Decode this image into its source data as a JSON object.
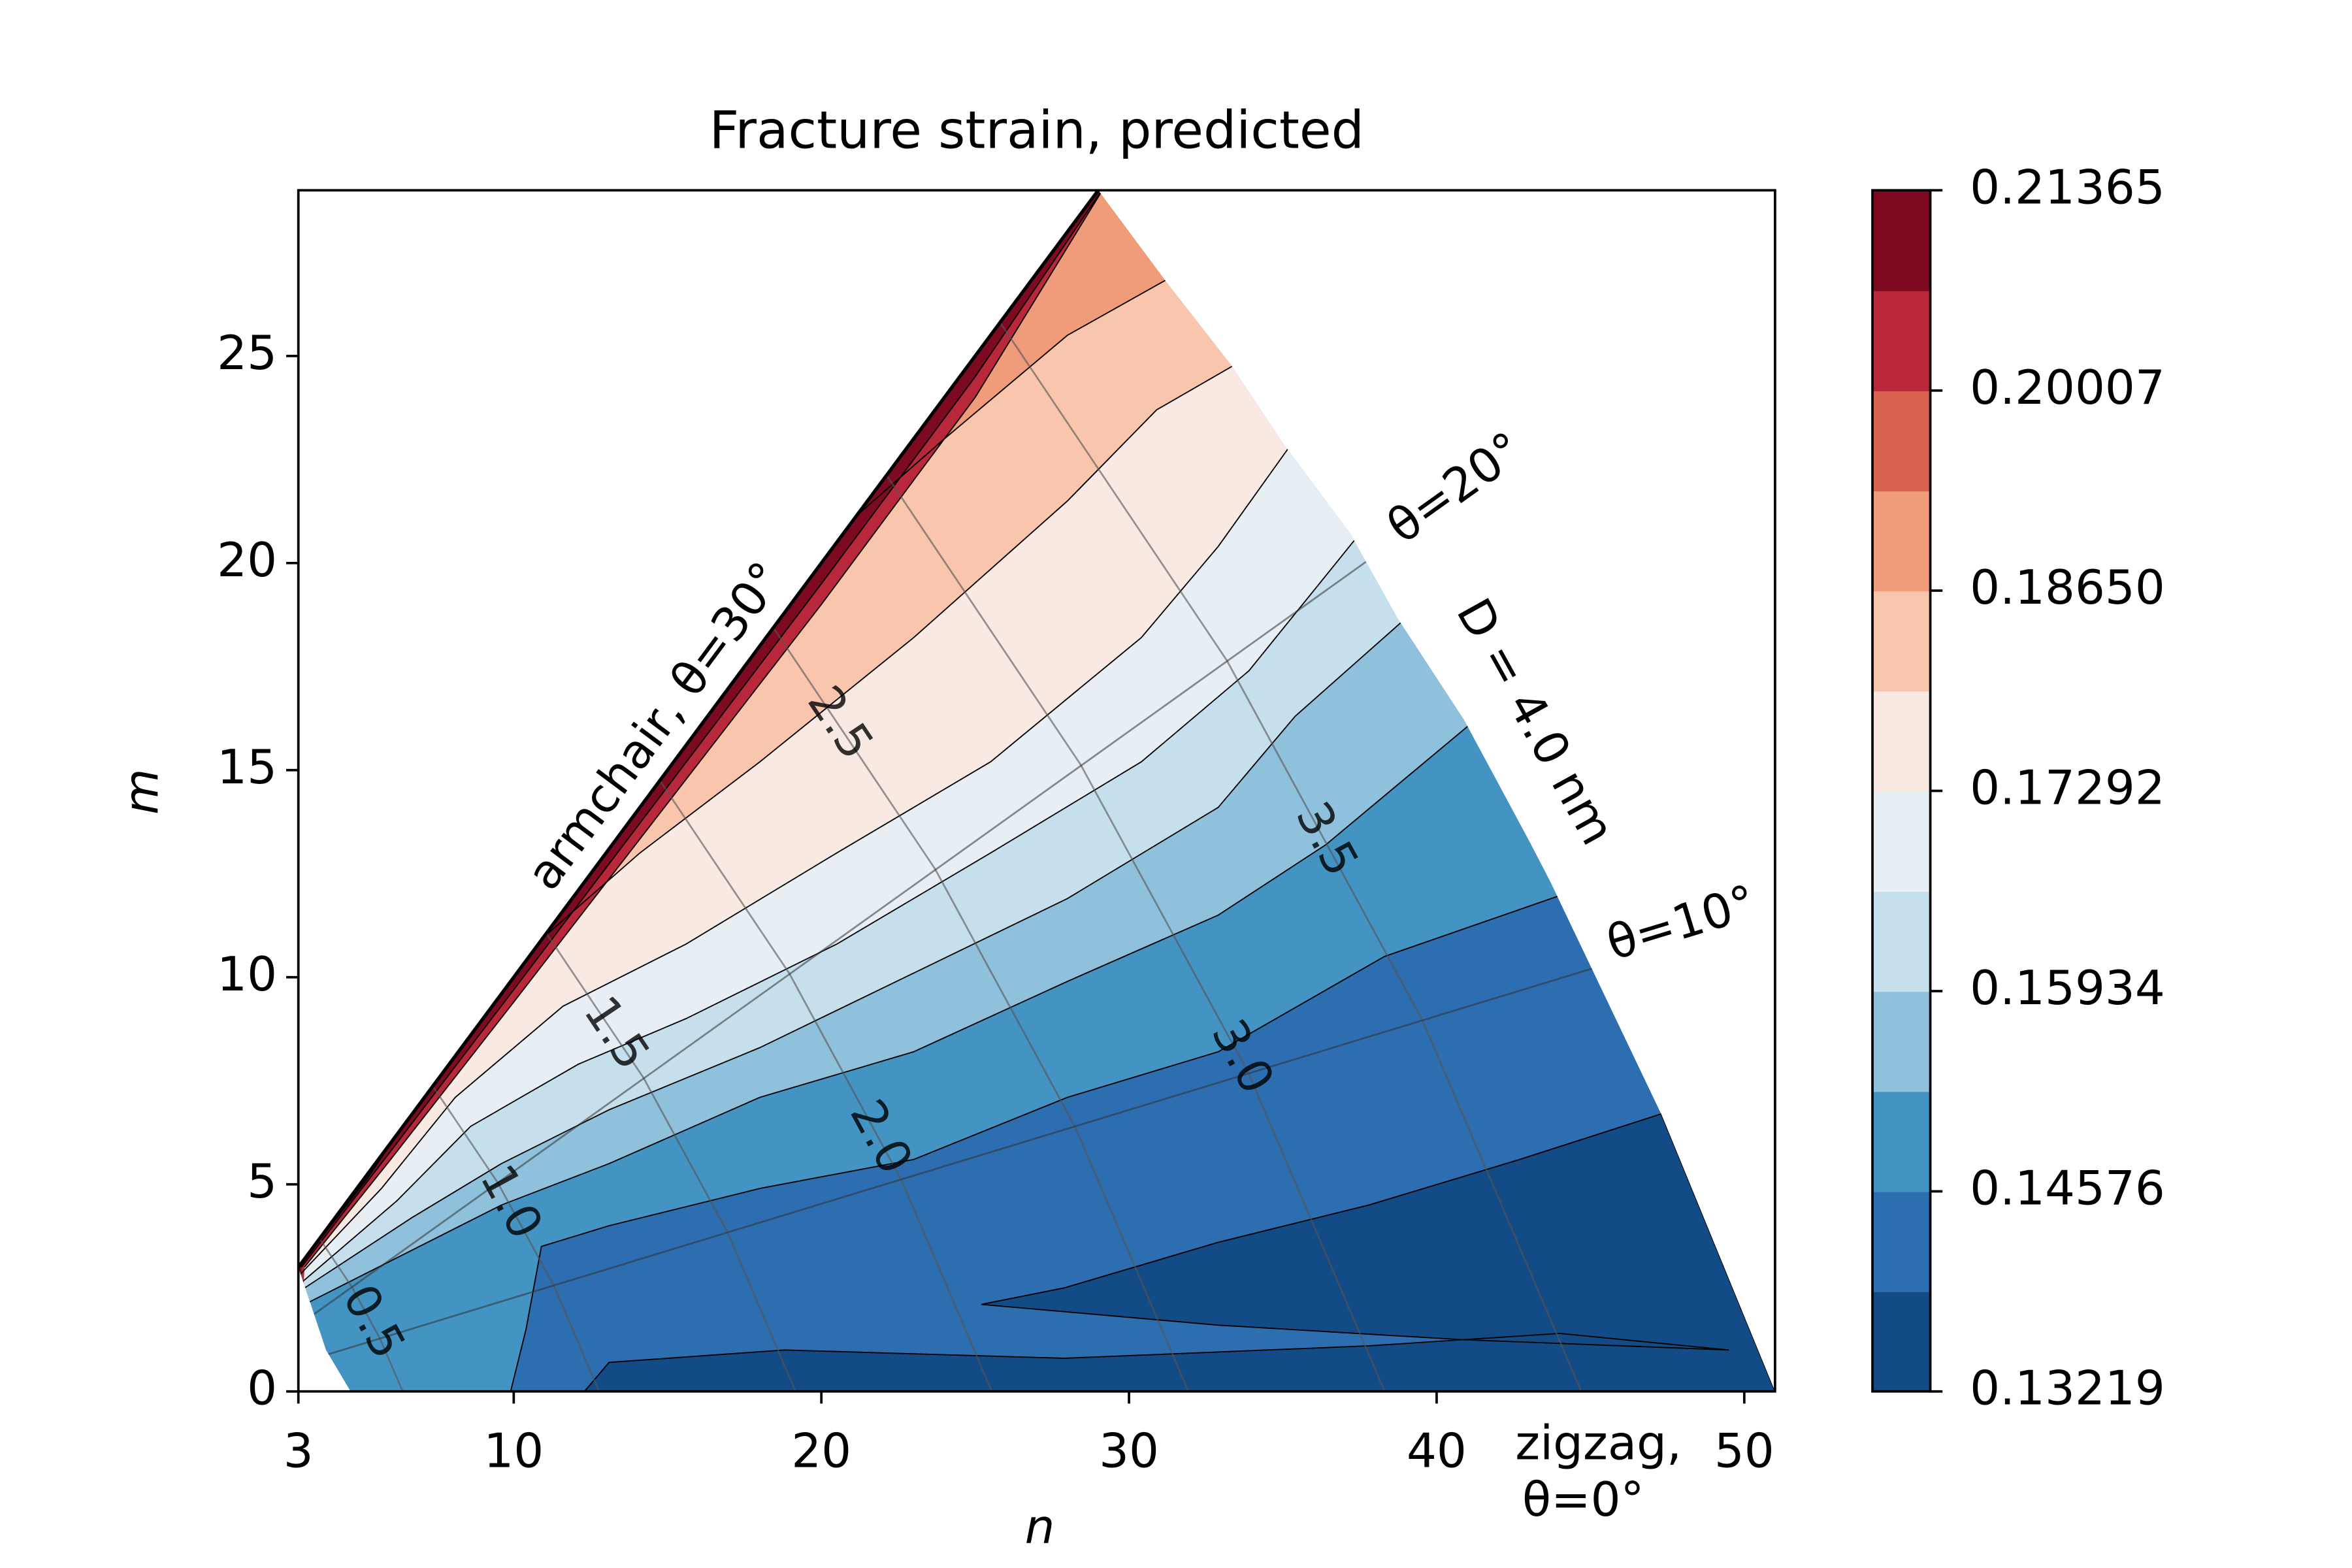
{
  "chart_data": {
    "type": "contour",
    "title": "Fracture strain, predicted",
    "xlabel": "n",
    "ylabel": "m",
    "xlim": [
      3,
      51
    ],
    "ylim": [
      0,
      29
    ],
    "xticks": [
      3,
      10,
      20,
      30,
      40,
      50
    ],
    "yticks": [
      0,
      5,
      10,
      15,
      20,
      25
    ],
    "levels": [
      0.13219,
      0.13898,
      0.14576,
      0.15255,
      0.15934,
      0.16613,
      0.17292,
      0.17971,
      0.1865,
      0.19328,
      0.20007,
      0.20686,
      0.21365
    ],
    "colors": [
      "#134b87",
      "#2d6eb0",
      "#4393c3",
      "#8fc1dd",
      "#c6dfed",
      "#e7eff5",
      "#f8e9e2",
      "#f9c6ad",
      "#f09b79",
      "#d8624f",
      "#b9283a",
      "#7e0a22"
    ],
    "colorbar_ticks": [
      0.13219,
      0.14576,
      0.15934,
      0.17292,
      {
        "value": 0.1865,
        "label": "0.18650"
      },
      0.20007,
      0.21365
    ],
    "line_color": "#000000",
    "regions": [
      {
        "level": 0.13898,
        "n": [
          3,
          29,
          31.2,
          33.3,
          35,
          37.2,
          38.7,
          40.9,
          43,
          43.7,
          47.3,
          51,
          4.7,
          3.9
        ],
        "m": [
          3,
          29,
          26.8,
          24.8,
          22.9,
          20.7,
          18.7,
          16.2,
          13.3,
          12.3,
          6.7,
          0,
          0,
          1
        ]
      },
      {
        "level": 0.13219,
        "n": [
          12.3,
          13.1,
          18.8,
          27.9,
          37.8,
          44,
          49.5,
          40.8,
          32.9,
          25.2,
          27.9,
          32.9,
          37.8,
          42.7,
          47.3,
          51
        ],
        "m": [
          0,
          0.7,
          1.0,
          0.8,
          1.1,
          1.4,
          1.0,
          1.25,
          1.6,
          2.1,
          2.5,
          3.6,
          4.5,
          5.6,
          6.7,
          0
        ]
      }
    ],
    "contours": [
      {
        "level": 0.14576,
        "n": [
          9.9,
          10.4,
          10.9,
          13.1,
          18,
          23,
          28,
          32.9,
          38.3,
          44.5
        ],
        "m": [
          0,
          1.5,
          3.5,
          4,
          4.9,
          5.6,
          7.1,
          8.2,
          10.5,
          12.1
        ]
      },
      {
        "level": 0.15255,
        "n": [
          3.2,
          7.2,
          9.6,
          13.1,
          18,
          23,
          28,
          32.9,
          36.4,
          41.4
        ],
        "m": [
          2.1,
          3.6,
          4.5,
          5.5,
          7.1,
          8.2,
          9.9,
          11.5,
          13.2,
          16.3
        ]
      },
      {
        "level": 0.15934,
        "n": [
          3.0,
          6.7,
          9.6,
          13.1,
          18,
          23,
          28,
          32.9,
          35.4,
          39.2
        ],
        "m": [
          2.4,
          4.2,
          5.5,
          6.8,
          8.3,
          10.1,
          11.9,
          14.1,
          16.3,
          18.8
        ]
      },
      {
        "level": 0.16613,
        "n": [
          2.9,
          6.2,
          8.6,
          12.1,
          15.6,
          20.5,
          25.5,
          30.4,
          33.9,
          37.6
        ],
        "m": [
          2.5,
          4.6,
          6.4,
          7.9,
          9,
          10.8,
          13,
          15.2,
          17.4,
          20.8
        ]
      },
      {
        "level": 0.17292,
        "n": [
          2.9,
          5.7,
          8.1,
          11.6,
          15.6,
          20.5,
          25.5,
          30.4,
          32.9,
          35.4
        ],
        "m": [
          2.7,
          4.9,
          7.1,
          9.3,
          10.8,
          13,
          15.2,
          18.2,
          20.4,
          23
        ]
      },
      {
        "level": 0.17971,
        "n": [
          2.9,
          5.2,
          7.4,
          10.1,
          14.1,
          18,
          23,
          28,
          30.9,
          33.7
        ],
        "m": [
          2.9,
          5.1,
          7.5,
          10.4,
          13,
          15.2,
          18.2,
          21.5,
          23.7,
          24.9
        ]
      },
      {
        "level": 0.1865,
        "n": [
          2.9,
          4.9,
          6.9,
          9.1,
          12.1,
          15.6,
          20,
          24,
          28,
          31.6
        ],
        "m": [
          3.0,
          5.3,
          7.9,
          10.8,
          14.1,
          17.1,
          20.4,
          23,
          25.5,
          27
        ]
      },
      {
        "level": 0.19328,
        "n": [
          2.9,
          4.4,
          6.2,
          8.1,
          10.6,
          13.6,
          17.1,
          20,
          24,
          27.5,
          29.3
        ],
        "m": [
          3.0,
          4.6,
          6.8,
          9.3,
          12.3,
          15.2,
          18.5,
          21.1,
          24.8,
          27.7,
          29.2
        ]
      },
      {
        "level": 0.20007,
        "n": [
          3.2,
          6,
          10,
          15,
          20,
          25,
          29.3
        ],
        "m": [
          3.0,
          5.6,
          9.4,
          14.2,
          19,
          24,
          29.2
        ]
      },
      {
        "level": 0.20686,
        "n": [
          3.1,
          6,
          10,
          15,
          20,
          25,
          29.3
        ],
        "m": [
          3.0,
          5.8,
          9.7,
          14.6,
          19.5,
          24.5,
          29.2
        ]
      }
    ],
    "angle_lines": [
      {
        "label": "θ=20°",
        "n": [
          3.2,
          38.4
        ],
        "m": [
          1.7,
          20.4
        ]
      },
      {
        "label": "θ=10°",
        "n": [
          3.9,
          47
        ],
        "m": [
          0.88,
          10.65
        ]
      }
    ],
    "diameter_lines": [
      {
        "label": "0.5",
        "n": [
          6.39,
          5.65,
          4.74,
          3.69
        ],
        "m": [
          0,
          1.28,
          2.52,
          3.69
        ]
      },
      {
        "label": "1.0",
        "n": [
          12.77,
          11.3,
          9.48,
          7.37
        ],
        "m": [
          0,
          2.56,
          5.04,
          7.37
        ]
      },
      {
        "label": "1.5",
        "n": [
          19.16,
          16.95,
          14.22,
          11.06
        ],
        "m": [
          0,
          3.84,
          7.57,
          11.06
        ]
      },
      {
        "label": "2.0",
        "n": [
          25.54,
          22.59,
          18.96,
          14.75
        ],
        "m": [
          0,
          5.12,
          10.09,
          14.75
        ]
      },
      {
        "label": "2.5",
        "n": [
          31.93,
          28.24,
          23.7,
          18.44
        ],
        "m": [
          0,
          6.4,
          12.61,
          18.44
        ]
      },
      {
        "label": "3.0",
        "n": [
          38.31,
          33.89,
          28.43,
          22.12
        ],
        "m": [
          0,
          7.68,
          15.13,
          22.12
        ]
      },
      {
        "label": "3.5",
        "n": [
          44.7,
          39.54,
          33.18,
          25.81
        ],
        "m": [
          0,
          8.96,
          17.65,
          25.81
        ]
      }
    ],
    "annotations": [
      "armchair, θ=30°",
      "D = 4.0 nm",
      "zigzag,",
      "θ=0°"
    ]
  }
}
